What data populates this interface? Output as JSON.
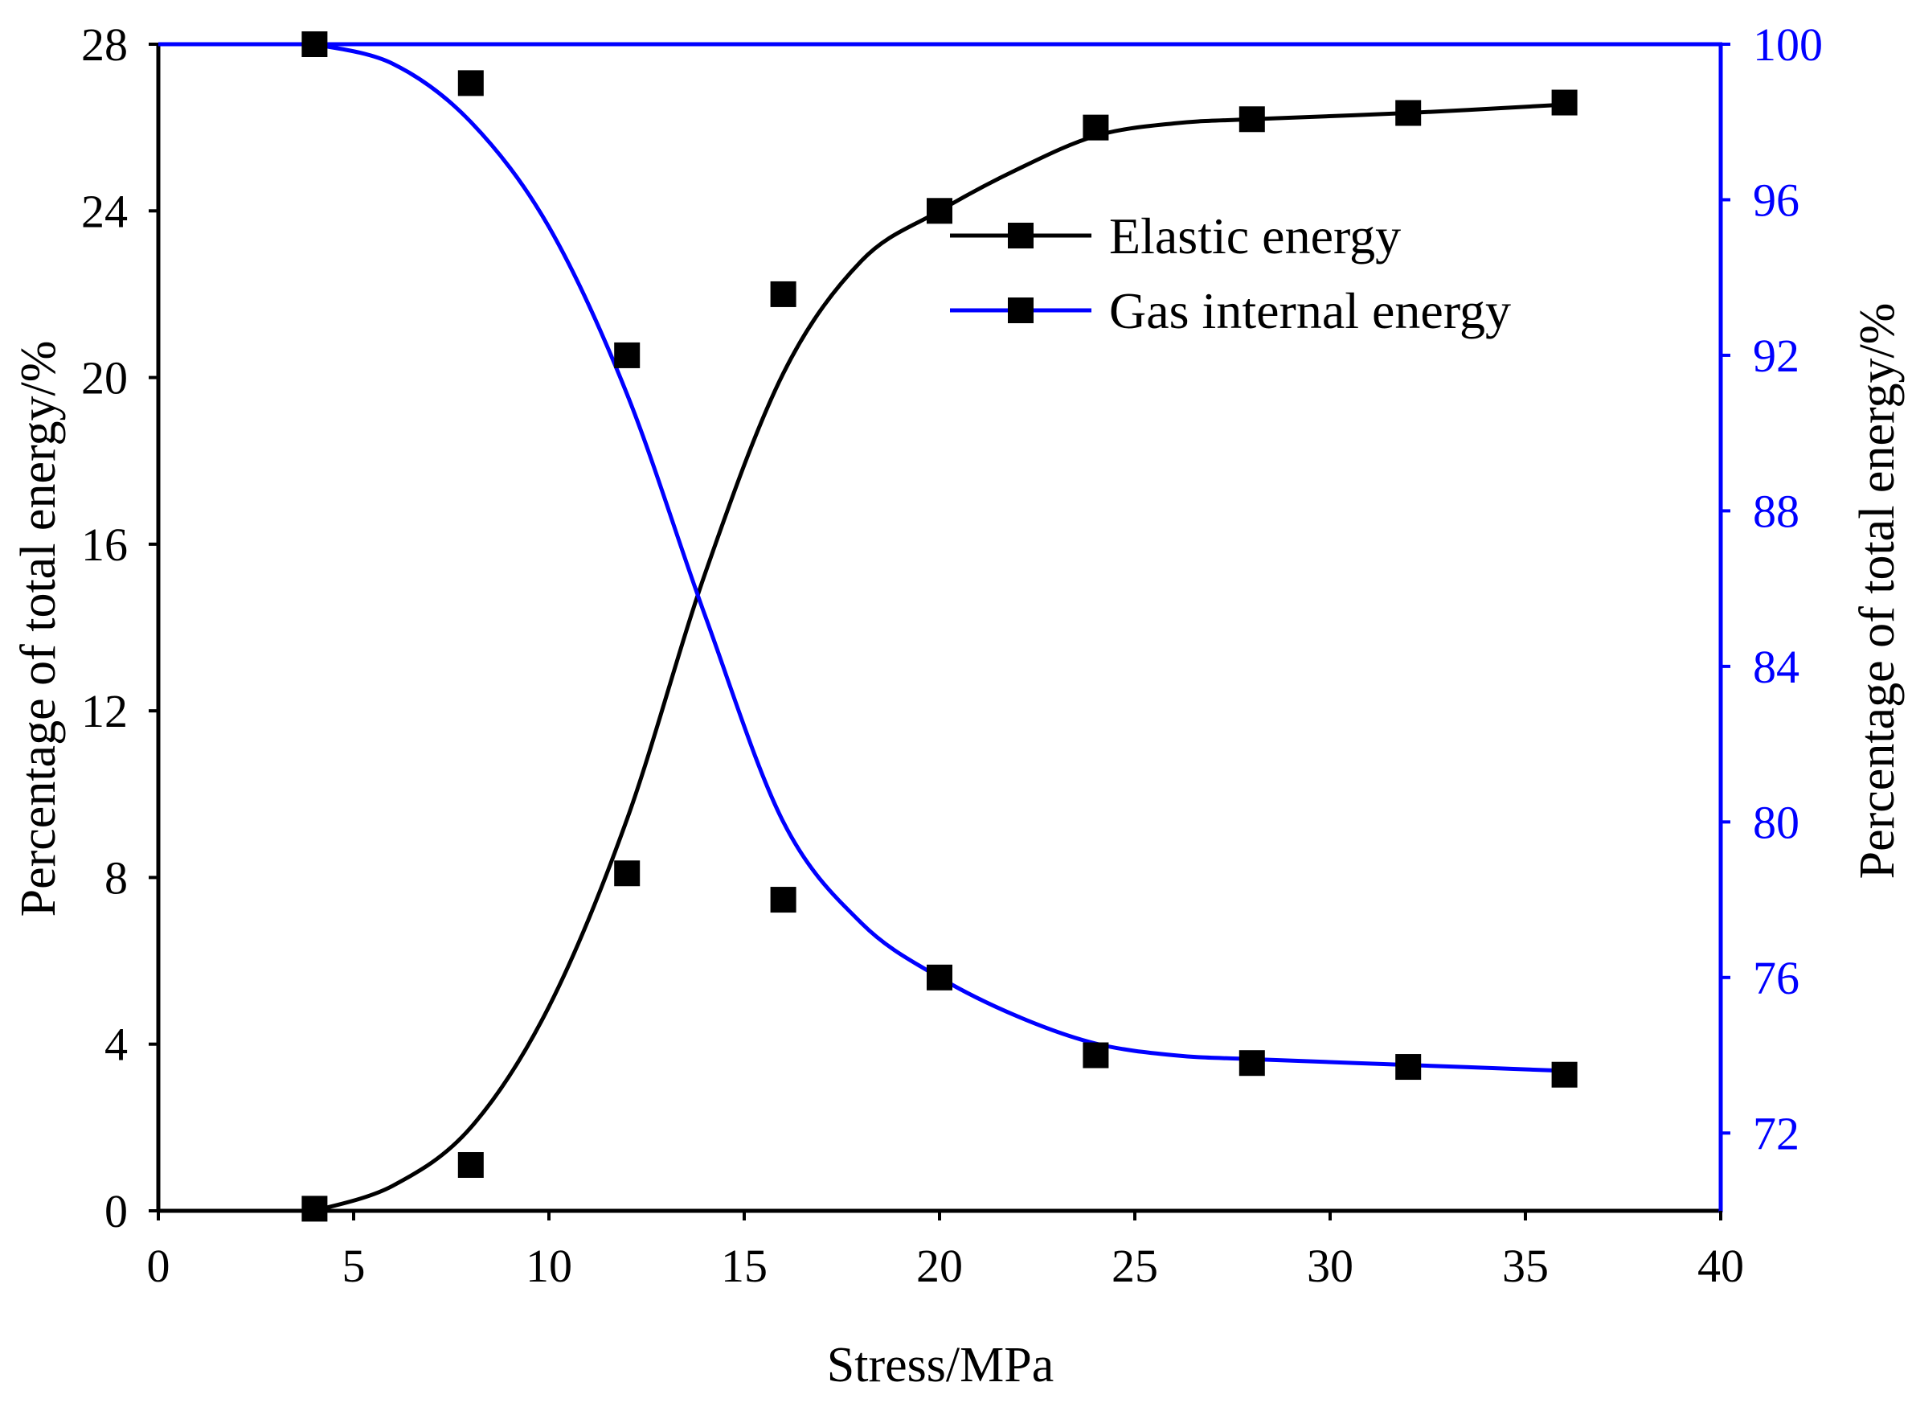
{
  "chart_data": {
    "type": "line",
    "title": "",
    "xlabel": "Stress/MPa",
    "ylabel_left": "Percentage of total energy/%",
    "ylabel_right": "Percentage of total energy/%",
    "xlim": [
      0,
      40
    ],
    "ylim_left": [
      0,
      28
    ],
    "ylim_right": [
      70,
      100
    ],
    "x_ticks": [
      "0",
      "5",
      "10",
      "15",
      "20",
      "25",
      "30",
      "35",
      "40"
    ],
    "y_left_ticks": [
      "0",
      "4",
      "8",
      "12",
      "16",
      "20",
      "24",
      "28"
    ],
    "y_right_ticks": [
      "72",
      "76",
      "80",
      "84",
      "88",
      "92",
      "96",
      "100"
    ],
    "grid": false,
    "legend_position": "top-right",
    "series": [
      {
        "name": "Elastic energy",
        "axis": "left",
        "color": "#000000",
        "marker": "square",
        "x": [
          4,
          8,
          12,
          16,
          20,
          24,
          28,
          32,
          36
        ],
        "values": [
          0.05,
          1.1,
          8.1,
          22.0,
          24.0,
          26.0,
          26.2,
          26.35,
          26.6
        ],
        "fit_x": [
          4,
          6,
          8,
          10,
          12,
          14,
          16,
          18,
          20,
          22,
          24,
          26,
          28,
          32,
          36
        ],
        "fit_values": [
          0.0,
          0.6,
          2.0,
          4.9,
          9.4,
          15.3,
          20.1,
          22.8,
          24.0,
          25.0,
          25.8,
          26.1,
          26.2,
          26.35,
          26.55
        ]
      },
      {
        "name": "Gas internal energy",
        "axis": "right",
        "color": "#0000ff",
        "marker": "square",
        "x": [
          4,
          8,
          12,
          16,
          20,
          24,
          28,
          32,
          36
        ],
        "values": [
          100.0,
          99.0,
          92.0,
          78.0,
          76.0,
          74.0,
          73.8,
          73.7,
          73.5
        ],
        "fit_x": [
          4,
          6,
          8,
          10,
          12,
          14,
          16,
          18,
          20,
          22,
          24,
          26,
          28,
          32,
          36
        ],
        "fit_values": [
          100.0,
          99.5,
          98.0,
          95.3,
          91.0,
          85.3,
          80.0,
          77.4,
          76.0,
          75.0,
          74.3,
          74.0,
          73.9,
          73.75,
          73.6
        ]
      }
    ]
  }
}
